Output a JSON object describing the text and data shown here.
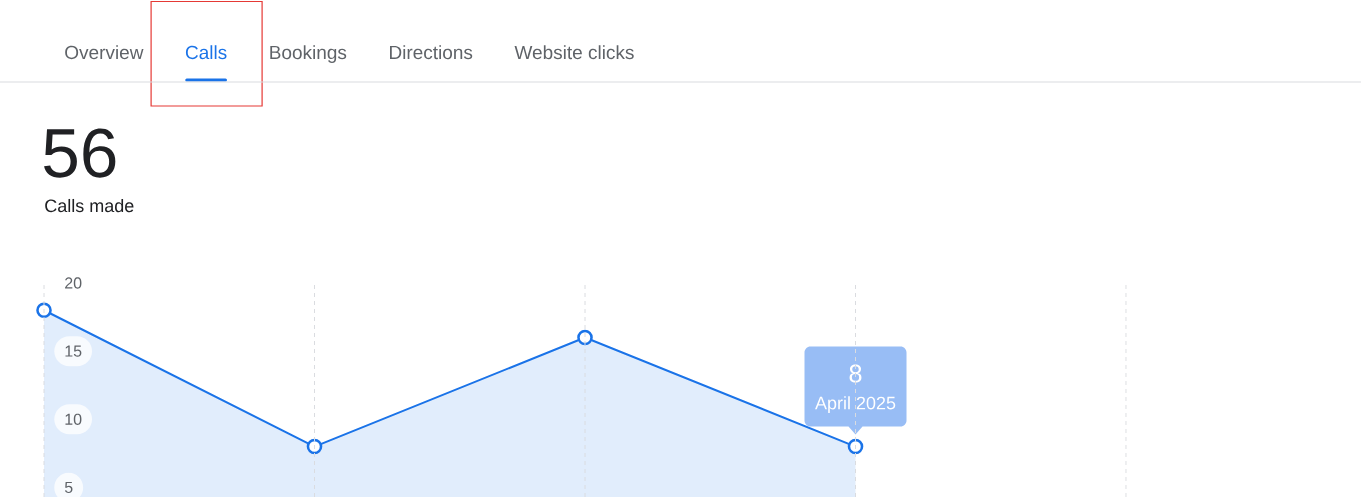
{
  "chart_data": {
    "type": "area",
    "title": "56",
    "subtitle": "Calls made",
    "categories": [
      null,
      null,
      null,
      null,
      null
    ],
    "series": [
      {
        "color": "#1a73e8",
        "values": [
          18,
          8,
          16,
          8,
          null
        ],
        "value_labels": [
          null,
          null,
          null,
          "8",
          null
        ]
      }
    ],
    "ylim": [
      4.3,
      20
    ],
    "yticks": [
      5,
      10,
      15,
      20
    ],
    "tick_labels": "y",
    "grid": "x",
    "marker": "circle",
    "line_style": "solid",
    "annotations": [
      "Overview",
      "Calls",
      "Bookings",
      "Directions",
      "Website clicks",
      {
        "text": "April 2025",
        "y": 8
      }
    ]
  }
}
